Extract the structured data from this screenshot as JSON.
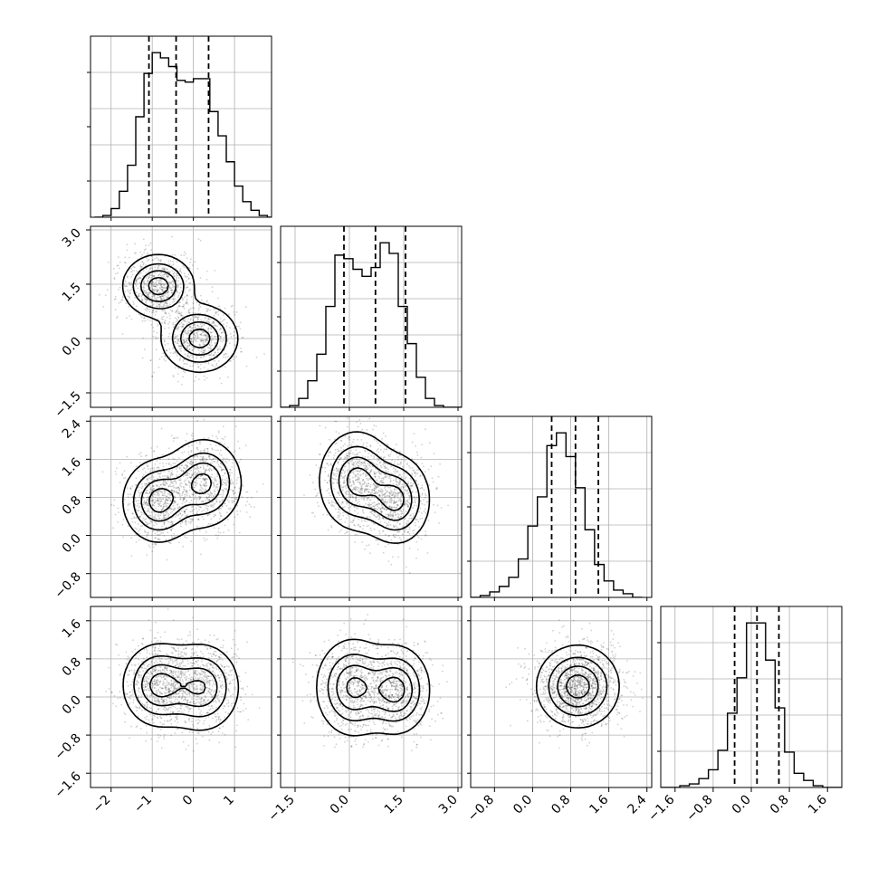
{
  "chart_data": {
    "type": "corner",
    "grid": true,
    "dimensions": [
      {
        "range": [
          -2.5,
          1.9
        ],
        "ticks": [
          -2,
          -1,
          0,
          1
        ],
        "tick_labels": [
          "−2",
          "−1",
          "0",
          "1"
        ],
        "quantiles": [
          -1.08,
          -0.42,
          0.37
        ],
        "hist_edges_start": -2.4,
        "hist_bin_width": 0.2,
        "hist_counts": [
          0.0,
          0.01,
          0.05,
          0.15,
          0.3,
          0.58,
          0.83,
          0.95,
          0.92,
          0.87,
          0.79,
          0.78,
          0.8,
          0.8,
          0.61,
          0.47,
          0.32,
          0.18,
          0.09,
          0.04,
          0.01,
          0.0
        ]
      },
      {
        "range": [
          -1.9,
          3.1
        ],
        "ticks": [
          -1.5,
          0.0,
          1.5,
          3.0
        ],
        "tick_labels": [
          "−1.5",
          "0.0",
          "1.5",
          "3.0"
        ],
        "quantiles": [
          -0.15,
          0.72,
          1.55
        ],
        "hist_edges_start": -1.9,
        "hist_bin_width": 0.25,
        "hist_counts": [
          0.0,
          0.01,
          0.05,
          0.15,
          0.3,
          0.57,
          0.86,
          0.84,
          0.78,
          0.74,
          0.79,
          0.93,
          0.87,
          0.57,
          0.36,
          0.17,
          0.05,
          0.01,
          0.0,
          0.0
        ]
      },
      {
        "range": [
          -1.3,
          2.5
        ],
        "ticks": [
          -0.8,
          0.0,
          0.8,
          1.6,
          2.4
        ],
        "tick_labels": [
          "−0.8",
          "0.0",
          "0.8",
          "1.6",
          "2.4"
        ],
        "quantiles": [
          0.4,
          0.9,
          1.38
        ],
        "hist_edges_start": -1.3,
        "hist_bin_width": 0.2,
        "hist_counts": [
          0.0,
          0.01,
          0.03,
          0.06,
          0.11,
          0.21,
          0.39,
          0.55,
          0.83,
          0.9,
          0.77,
          0.6,
          0.37,
          0.18,
          0.09,
          0.04,
          0.02,
          0.0
        ]
      },
      {
        "range": [
          -1.9,
          1.9
        ],
        "ticks": [
          -1.6,
          -0.8,
          0.0,
          0.8,
          1.6
        ],
        "tick_labels": [
          "−1.6",
          "−0.8",
          "0.0",
          "0.8",
          "1.6"
        ],
        "quantiles": [
          -0.35,
          0.12,
          0.58
        ],
        "hist_edges_start": -1.9,
        "hist_bin_width": 0.2,
        "hist_counts": [
          0.0,
          0.0,
          0.01,
          0.02,
          0.05,
          0.1,
          0.21,
          0.42,
          0.62,
          0.93,
          0.93,
          0.72,
          0.45,
          0.2,
          0.08,
          0.04,
          0.01,
          0.0,
          0.0
        ]
      }
    ],
    "pairs": [
      {
        "row": 1,
        "col": 0,
        "modes": [
          {
            "x": -0.85,
            "y": 1.45,
            "s": 0.42,
            "w": 1.0
          },
          {
            "x": 0.15,
            "y": 0.0,
            "s": 0.45,
            "w": 1.0
          }
        ],
        "contour_levels": [
          0.12,
          0.35,
          0.6,
          0.85
        ]
      },
      {
        "row": 2,
        "col": 0,
        "modes": [
          {
            "x": -0.85,
            "y": 0.72,
            "s": 0.42,
            "w": 1.0
          },
          {
            "x": 0.25,
            "y": 1.1,
            "s": 0.45,
            "w": 0.95
          }
        ],
        "contour_levels": [
          0.12,
          0.35,
          0.6,
          0.85
        ]
      },
      {
        "row": 2,
        "col": 1,
        "modes": [
          {
            "x": 0.2,
            "y": 1.15,
            "s": 0.5,
            "w": 1.0
          },
          {
            "x": 1.3,
            "y": 0.75,
            "s": 0.45,
            "w": 0.95
          }
        ],
        "contour_levels": [
          0.12,
          0.35,
          0.6,
          0.85
        ]
      },
      {
        "row": 3,
        "col": 0,
        "modes": [
          {
            "x": -0.85,
            "y": 0.25,
            "s": 0.42,
            "w": 1.0
          },
          {
            "x": 0.2,
            "y": 0.2,
            "s": 0.45,
            "w": 0.9
          }
        ],
        "contour_levels": [
          0.12,
          0.35,
          0.6,
          0.85
        ]
      },
      {
        "row": 3,
        "col": 1,
        "modes": [
          {
            "x": 0.1,
            "y": 0.2,
            "s": 0.5,
            "w": 0.95
          },
          {
            "x": 1.3,
            "y": 0.15,
            "s": 0.45,
            "w": 1.0
          }
        ],
        "contour_levels": [
          0.12,
          0.35,
          0.6,
          0.85
        ]
      },
      {
        "row": 3,
        "col": 2,
        "modes": [
          {
            "x": 0.95,
            "y": 0.22,
            "s": 0.42,
            "w": 1.0
          }
        ],
        "contour_levels": [
          0.12,
          0.35,
          0.6,
          0.85
        ]
      }
    ]
  }
}
